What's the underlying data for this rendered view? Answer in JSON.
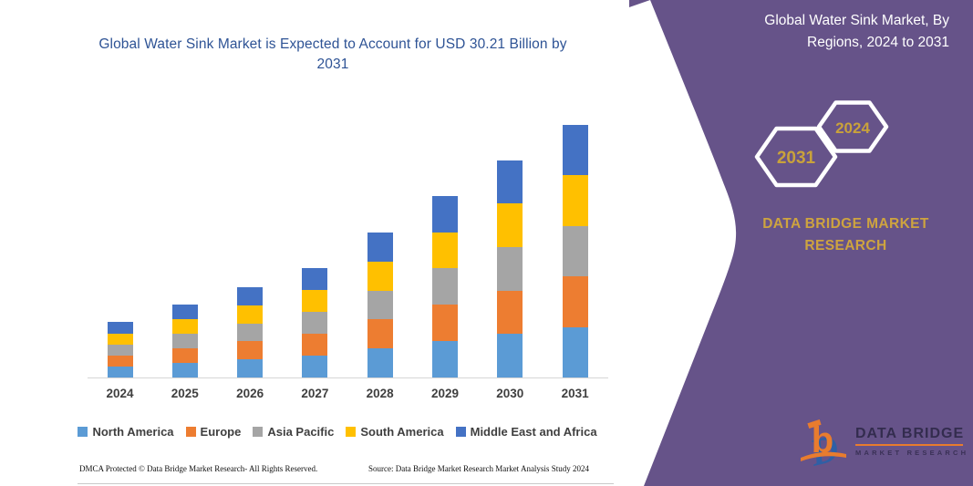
{
  "chart": {
    "title": "Global Water Sink Market is Expected to Account for USD 30.21 Billion by 2031"
  },
  "chart_data": {
    "type": "bar",
    "stacked": true,
    "title": "Global Water Sink Market is Expected to Account for USD 30.21 Billion by 2031",
    "unit": "USD Billion",
    "categories": [
      "2024",
      "2025",
      "2026",
      "2027",
      "2028",
      "2029",
      "2030",
      "2031"
    ],
    "series": [
      {
        "name": "North America",
        "color": "#5B9BD5",
        "values": [
          1.32,
          1.74,
          2.16,
          2.61,
          3.46,
          4.34,
          5.19,
          6.04
        ]
      },
      {
        "name": "Europe",
        "color": "#ED7D31",
        "values": [
          1.32,
          1.74,
          2.16,
          2.61,
          3.46,
          4.34,
          5.19,
          6.04
        ]
      },
      {
        "name": "Asia Pacific",
        "color": "#A5A5A5",
        "values": [
          1.32,
          1.74,
          2.16,
          2.61,
          3.46,
          4.34,
          5.19,
          6.04
        ]
      },
      {
        "name": "South America",
        "color": "#FFC000",
        "values": [
          1.32,
          1.74,
          2.16,
          2.61,
          3.46,
          4.34,
          5.19,
          6.04
        ]
      },
      {
        "name": "Middle East and Africa",
        "color": "#4472C4",
        "values": [
          1.32,
          1.74,
          2.16,
          2.61,
          3.46,
          4.34,
          5.19,
          6.05
        ]
      }
    ],
    "totals_estimated": [
      6.6,
      8.7,
      10.8,
      13.05,
      17.3,
      21.7,
      25.95,
      30.21
    ],
    "xlabel": "",
    "ylabel": "",
    "ylim": [
      0,
      30.5
    ],
    "grid": false,
    "y_axis_labels_visible": false,
    "legend_position": "bottom"
  },
  "footer": {
    "left": "DMCA Protected © Data Bridge Market Research-  All Rights Reserved.",
    "right": "Source: Data Bridge Market Research  Market Analysis Study 2024"
  },
  "panel": {
    "title": "Global Water Sink Market, By Regions, 2024 to 2031",
    "hexagons": [
      {
        "label": "2031"
      },
      {
        "label": "2024"
      }
    ],
    "brand": "DATA BRIDGE MARKET RESEARCH",
    "logo": {
      "line1": "DATA BRIDGE",
      "line2": "MARKET RESEARCH"
    },
    "colors": {
      "panel_background": "#665389",
      "accent_gold": "#C9A23B",
      "title_blue": "#2E5395",
      "logo_orange": "#E87C2E",
      "logo_blue": "#2F5FA5"
    }
  }
}
